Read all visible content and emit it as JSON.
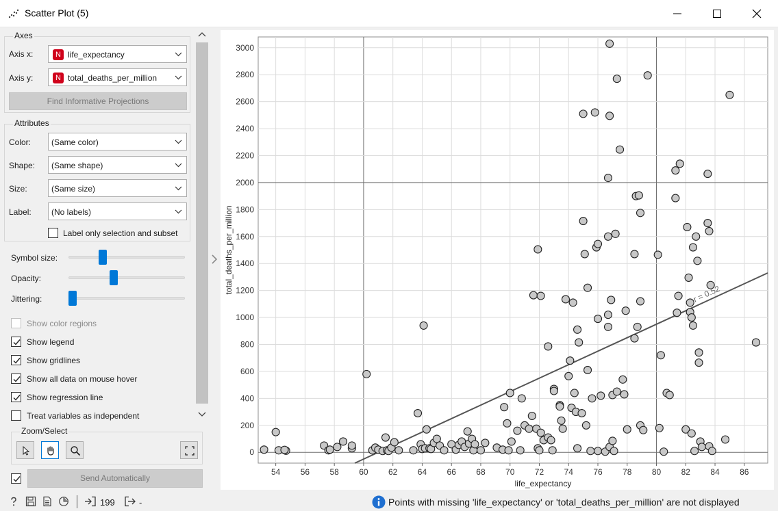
{
  "window": {
    "title": "Scatter Plot (5)",
    "app_icon": "scatter-plot-icon"
  },
  "axes_group": {
    "title": "Axes",
    "axis_x_label": "Axis x:",
    "axis_x_value": "life_expectancy",
    "axis_y_label": "Axis y:",
    "axis_y_value": "total_deaths_per_million",
    "variable_badge": "N",
    "find_projections_label": "Find Informative Projections"
  },
  "attributes_group": {
    "title": "Attributes",
    "color_label": "Color:",
    "color_value": "(Same color)",
    "shape_label": "Shape:",
    "shape_value": "(Same shape)",
    "size_label": "Size:",
    "size_value": "(Same size)",
    "label_label": "Label:",
    "label_value": "(No labels)",
    "label_only_selection": "Label only selection and subset",
    "label_only_selection_checked": false
  },
  "sliders": {
    "symbol_size_label": "Symbol size:",
    "symbol_size_level": 0.28,
    "opacity_label": "Opacity:",
    "opacity_level": 0.38,
    "jittering_label": "Jittering:",
    "jittering_level": 0.0
  },
  "options": [
    {
      "label": "Show color regions",
      "checked": false,
      "disabled": true
    },
    {
      "label": "Show legend",
      "checked": true,
      "disabled": false
    },
    {
      "label": "Show gridlines",
      "checked": true,
      "disabled": false
    },
    {
      "label": "Show all data on mouse hover",
      "checked": true,
      "disabled": false
    },
    {
      "label": "Show regression line",
      "checked": true,
      "disabled": false
    },
    {
      "label": "Treat variables as independent",
      "checked": false,
      "disabled": false
    }
  ],
  "zoom_group": {
    "title": "Zoom/Select",
    "tools": [
      "select-pointer-icon",
      "pan-hand-icon",
      "zoom-magnifier-icon"
    ],
    "active_tool": "pan-hand-icon",
    "reset_icon": "fit-view-icon"
  },
  "send": {
    "checked": true,
    "label": "Send Automatically"
  },
  "status": {
    "count": "199",
    "output": "-",
    "message": "Points with missing 'life_expectancy' or 'total_deaths_per_million' are not displayed",
    "icons": [
      "help-icon",
      "save-icon",
      "report-icon",
      "visualize-icon",
      "input-icon",
      "output-icon",
      "info-icon"
    ]
  },
  "colors": {
    "accent": "#0078d7",
    "badge": "#d0021b",
    "point_fill": "#c8c8c8",
    "regression_line": "#555555"
  },
  "chart_data": {
    "type": "scatter",
    "xlabel": "life_expectancy",
    "ylabel": "total_deaths_per_million",
    "xlim": [
      52.8,
      87.6
    ],
    "ylim": [
      -80,
      3080
    ],
    "xticks": [
      54,
      56,
      58,
      60,
      62,
      64,
      66,
      68,
      70,
      72,
      74,
      76,
      78,
      80,
      82,
      84,
      86
    ],
    "yticks": [
      0,
      200,
      400,
      600,
      800,
      1000,
      1200,
      1400,
      1600,
      1800,
      2000,
      2200,
      2400,
      2600,
      2800,
      3000
    ],
    "grid": true,
    "regression": {
      "label": "r = 0.52",
      "x1": 59.4,
      "y1": -80,
      "x2": 87.6,
      "y2": 1330
    },
    "points": [
      [
        53.2,
        20
      ],
      [
        54.0,
        150
      ],
      [
        54.2,
        15
      ],
      [
        54.7,
        12
      ],
      [
        54.6,
        18
      ],
      [
        57.3,
        50
      ],
      [
        57.6,
        15
      ],
      [
        57.7,
        20
      ],
      [
        58.2,
        40
      ],
      [
        58.6,
        80
      ],
      [
        59.2,
        30
      ],
      [
        59.2,
        50
      ],
      [
        60.2,
        580
      ],
      [
        60.6,
        15
      ],
      [
        60.8,
        35
      ],
      [
        61.0,
        20
      ],
      [
        61.3,
        10
      ],
      [
        61.5,
        110
      ],
      [
        61.6,
        15
      ],
      [
        61.7,
        10
      ],
      [
        61.9,
        35
      ],
      [
        62.1,
        75
      ],
      [
        62.4,
        15
      ],
      [
        63.4,
        15
      ],
      [
        63.7,
        290
      ],
      [
        63.9,
        60
      ],
      [
        64.0,
        25
      ],
      [
        64.1,
        940
      ],
      [
        64.2,
        30
      ],
      [
        64.3,
        170
      ],
      [
        64.5,
        30
      ],
      [
        64.6,
        25
      ],
      [
        64.8,
        70
      ],
      [
        65.0,
        100
      ],
      [
        65.2,
        50
      ],
      [
        65.5,
        15
      ],
      [
        66.0,
        60
      ],
      [
        66.3,
        20
      ],
      [
        66.5,
        55
      ],
      [
        66.7,
        80
      ],
      [
        66.9,
        40
      ],
      [
        67.1,
        155
      ],
      [
        67.2,
        65
      ],
      [
        67.4,
        100
      ],
      [
        67.5,
        15
      ],
      [
        67.6,
        60
      ],
      [
        68.0,
        15
      ],
      [
        68.3,
        70
      ],
      [
        69.1,
        35
      ],
      [
        69.5,
        20
      ],
      [
        69.6,
        335
      ],
      [
        69.8,
        215
      ],
      [
        69.9,
        15
      ],
      [
        70.0,
        440
      ],
      [
        70.1,
        80
      ],
      [
        70.5,
        160
      ],
      [
        70.7,
        15
      ],
      [
        70.8,
        400
      ],
      [
        71.0,
        200
      ],
      [
        71.3,
        175
      ],
      [
        71.5,
        270
      ],
      [
        71.6,
        1165
      ],
      [
        71.8,
        175
      ],
      [
        71.9,
        30
      ],
      [
        71.9,
        1505
      ],
      [
        72.0,
        15
      ],
      [
        72.1,
        1160
      ],
      [
        72.1,
        145
      ],
      [
        72.3,
        90
      ],
      [
        72.6,
        110
      ],
      [
        72.6,
        785
      ],
      [
        72.8,
        90
      ],
      [
        72.9,
        15
      ],
      [
        73.0,
        470
      ],
      [
        73.0,
        455
      ],
      [
        73.4,
        350
      ],
      [
        73.4,
        340
      ],
      [
        73.5,
        235
      ],
      [
        73.6,
        175
      ],
      [
        73.8,
        1135
      ],
      [
        74.0,
        565
      ],
      [
        74.1,
        680
      ],
      [
        74.2,
        330
      ],
      [
        74.3,
        1110
      ],
      [
        74.4,
        440
      ],
      [
        74.5,
        300
      ],
      [
        74.6,
        910
      ],
      [
        74.6,
        30
      ],
      [
        74.7,
        815
      ],
      [
        74.9,
        290
      ],
      [
        75.0,
        2510
      ],
      [
        75.0,
        1715
      ],
      [
        75.1,
        1470
      ],
      [
        75.2,
        200
      ],
      [
        75.3,
        1220
      ],
      [
        75.3,
        610
      ],
      [
        75.5,
        10
      ],
      [
        75.6,
        400
      ],
      [
        75.8,
        2520
      ],
      [
        75.9,
        1520
      ],
      [
        76.0,
        1545
      ],
      [
        76.0,
        990
      ],
      [
        76.0,
        10
      ],
      [
        76.2,
        420
      ],
      [
        76.5,
        5
      ],
      [
        76.7,
        2035
      ],
      [
        76.7,
        1600
      ],
      [
        76.8,
        3030
      ],
      [
        76.8,
        2495
      ],
      [
        76.7,
        930
      ],
      [
        76.7,
        1020
      ],
      [
        76.8,
        40
      ],
      [
        76.9,
        1130
      ],
      [
        77.0,
        425
      ],
      [
        77.0,
        85
      ],
      [
        77.1,
        10
      ],
      [
        77.2,
        1620
      ],
      [
        77.3,
        2770
      ],
      [
        77.3,
        450
      ],
      [
        77.5,
        2245
      ],
      [
        77.7,
        540
      ],
      [
        77.8,
        430
      ],
      [
        77.9,
        1050
      ],
      [
        78.0,
        170
      ],
      [
        78.5,
        1470
      ],
      [
        78.5,
        845
      ],
      [
        78.6,
        1900
      ],
      [
        78.7,
        930
      ],
      [
        78.8,
        1905
      ],
      [
        78.9,
        1775
      ],
      [
        78.9,
        1120
      ],
      [
        78.9,
        200
      ],
      [
        79.1,
        165
      ],
      [
        79.4,
        2795
      ],
      [
        80.1,
        1465
      ],
      [
        80.2,
        180
      ],
      [
        80.3,
        720
      ],
      [
        80.5,
        5
      ],
      [
        80.7,
        440
      ],
      [
        80.9,
        425
      ],
      [
        81.3,
        2090
      ],
      [
        81.3,
        1885
      ],
      [
        81.4,
        1035
      ],
      [
        81.5,
        1160
      ],
      [
        81.6,
        2140
      ],
      [
        82.0,
        170
      ],
      [
        82.1,
        1670
      ],
      [
        82.2,
        1295
      ],
      [
        82.3,
        1110
      ],
      [
        82.3,
        1040
      ],
      [
        82.4,
        1000
      ],
      [
        82.4,
        140
      ],
      [
        82.5,
        1520
      ],
      [
        82.5,
        940
      ],
      [
        82.6,
        10
      ],
      [
        82.7,
        1600
      ],
      [
        82.8,
        1420
      ],
      [
        82.9,
        665
      ],
      [
        82.9,
        740
      ],
      [
        83.0,
        80
      ],
      [
        83.1,
        40
      ],
      [
        83.5,
        2065
      ],
      [
        83.5,
        1700
      ],
      [
        83.6,
        1640
      ],
      [
        83.7,
        1240
      ],
      [
        83.6,
        45
      ],
      [
        83.8,
        10
      ],
      [
        84.7,
        95
      ],
      [
        85.0,
        2650
      ],
      [
        86.8,
        815
      ]
    ]
  }
}
